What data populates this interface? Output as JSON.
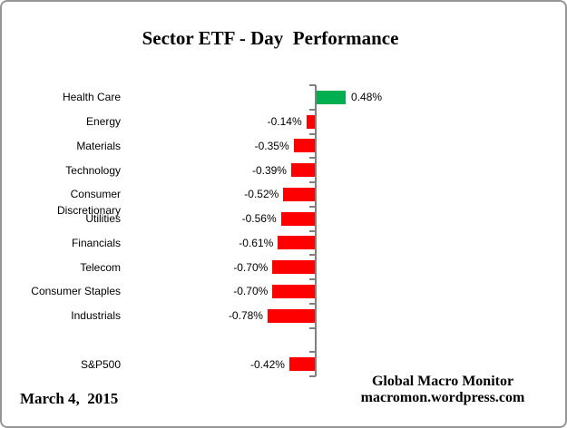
{
  "title": "Sector ETF - Day  Performance",
  "footer": {
    "date": "March 4,  2015",
    "brand_line1": "Global Macro Monitor",
    "brand_line2": "macromon.wordpress.com"
  },
  "chart_data": {
    "type": "bar",
    "orientation": "horizontal",
    "title": "Sector ETF - Day  Performance",
    "value_unit": "percent",
    "xlim": [
      -0.9,
      0.6
    ],
    "grid": false,
    "legend": false,
    "axis_color": "#808080",
    "colors": {
      "positive": "#00B050",
      "negative": "#FF0000"
    },
    "rows": [
      {
        "label": "Health Care",
        "value": 0.48,
        "display": "0.48%"
      },
      {
        "label": "Energy",
        "value": -0.14,
        "display": "-0.14%"
      },
      {
        "label": "Materials",
        "value": -0.35,
        "display": "-0.35%"
      },
      {
        "label": "Technology",
        "value": -0.39,
        "display": "-0.39%"
      },
      {
        "label": "Consumer Discretionary",
        "value": -0.52,
        "display": "-0.52%"
      },
      {
        "label": "Utilities",
        "value": -0.56,
        "display": "-0.56%"
      },
      {
        "label": "Financials",
        "value": -0.61,
        "display": "-0.61%"
      },
      {
        "label": "Telecom",
        "value": -0.7,
        "display": "-0.70%"
      },
      {
        "label": "Consumer Staples",
        "value": -0.7,
        "display": "-0.70%"
      },
      {
        "label": "Industrials",
        "value": -0.78,
        "display": "-0.78%"
      },
      {
        "label": "",
        "value": null,
        "display": "",
        "spacer": true
      },
      {
        "label": "S&P500",
        "value": -0.42,
        "display": "-0.42%"
      }
    ]
  }
}
